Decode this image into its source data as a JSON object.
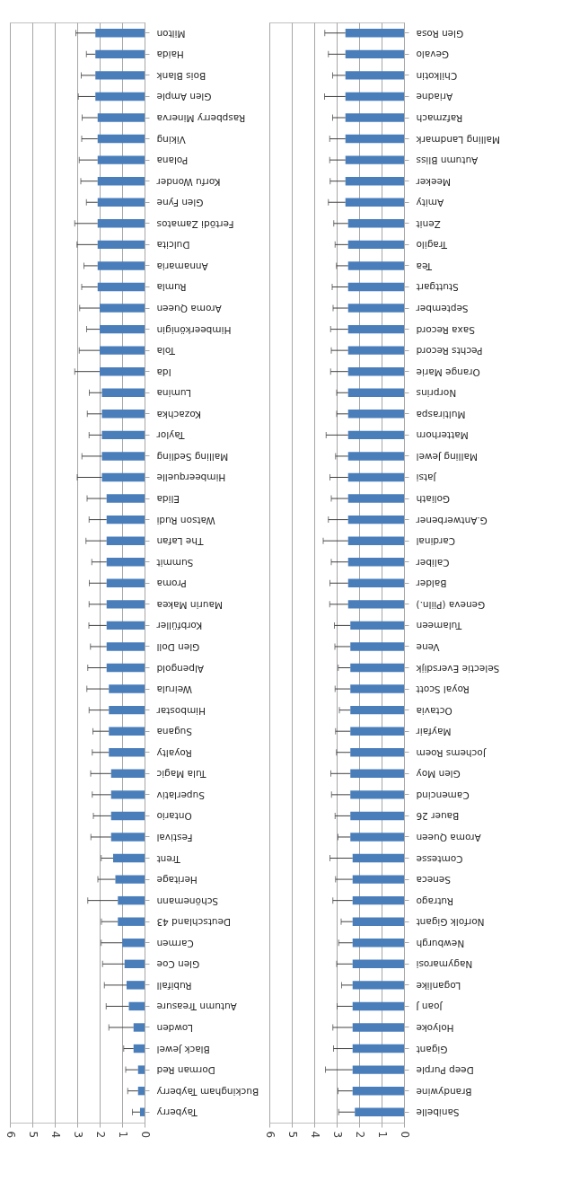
{
  "chart_data": [
    {
      "type": "bar",
      "orientation": "horizontal",
      "color": "#4a7ebb",
      "grid": "x",
      "xlim": [
        6,
        0
      ],
      "xticks": [
        0,
        1,
        2,
        3,
        4,
        5,
        6
      ],
      "categories": [
        "Milton",
        "Haida",
        "Bois Blank",
        "Glen Ample",
        "Raspberry Minerva",
        "Viking",
        "Polana",
        "Korfu Wonder",
        "Glen Fyne",
        "Fertödi Zamatos",
        "Dulcita",
        "Annamaria",
        "Rumla",
        "Aroma Queen",
        "Himbeerkönigin",
        "Tola",
        "Ida",
        "Lumina",
        "Kozachka",
        "Taylor",
        "Malling Sedling",
        "Himbeerquelle",
        "Elida",
        "Watson Rudi",
        "The Lafan",
        "Summit",
        "Proma",
        "Maurin Makea",
        "Korbfüller",
        "Glen Doll",
        "Alpengold",
        "Weirula",
        "Himbostar",
        "Sugana",
        "Royalty",
        "Tula Magic",
        "Superlativ",
        "Ontario",
        "Festival",
        "Trent",
        "Heritage",
        "Schönemann",
        "Deutschland 43",
        "Carmen",
        "Glen Coe",
        "Rubifall",
        "Autumn Treasure",
        "Lowden",
        "Black Jewel",
        "Dorman Red",
        "Buckingham Tayberry",
        "Tayberry"
      ],
      "values": [
        2.19,
        2.19,
        2.19,
        2.19,
        2.09,
        2.09,
        2.09,
        2.09,
        2.09,
        2.09,
        2.09,
        2.09,
        2.09,
        2.0,
        2.0,
        2.0,
        2.0,
        1.9,
        1.9,
        1.9,
        1.9,
        1.9,
        1.69,
        1.69,
        1.69,
        1.69,
        1.69,
        1.69,
        1.69,
        1.69,
        1.69,
        1.59,
        1.59,
        1.59,
        1.59,
        1.49,
        1.49,
        1.49,
        1.49,
        1.4,
        1.3,
        1.19,
        1.19,
        0.99,
        0.89,
        0.8,
        0.7,
        0.49,
        0.49,
        0.29,
        0.29,
        0.2
      ],
      "errors": [
        [
          2.19,
          3.06
        ],
        [
          2.19,
          2.59
        ],
        [
          2.19,
          2.82
        ],
        [
          2.19,
          2.95
        ],
        [
          2.09,
          2.78
        ],
        [
          2.09,
          2.8
        ],
        [
          2.09,
          2.91
        ],
        [
          2.09,
          2.84
        ],
        [
          2.09,
          2.59
        ],
        [
          2.09,
          3.11
        ],
        [
          2.09,
          3.01
        ],
        [
          2.09,
          2.7
        ],
        [
          2.09,
          2.8
        ],
        [
          2.0,
          2.89
        ],
        [
          2.0,
          2.58
        ],
        [
          2.0,
          2.91
        ],
        [
          2.0,
          3.11
        ],
        [
          1.9,
          2.46
        ],
        [
          1.9,
          2.55
        ],
        [
          1.9,
          2.47
        ],
        [
          1.9,
          2.79
        ],
        [
          1.9,
          3.0
        ],
        [
          1.69,
          2.56
        ],
        [
          1.69,
          2.47
        ],
        [
          1.69,
          2.61
        ],
        [
          1.69,
          2.35
        ],
        [
          1.69,
          2.46
        ],
        [
          1.69,
          2.47
        ],
        [
          1.69,
          2.48
        ],
        [
          1.69,
          2.41
        ],
        [
          1.69,
          2.53
        ],
        [
          1.59,
          2.57
        ],
        [
          1.59,
          2.47
        ],
        [
          1.59,
          2.3
        ],
        [
          1.59,
          2.33
        ],
        [
          1.49,
          2.4
        ],
        [
          1.49,
          2.33
        ],
        [
          1.49,
          2.28
        ],
        [
          1.49,
          2.39
        ],
        [
          1.4,
          1.93
        ],
        [
          1.3,
          2.08
        ],
        [
          1.19,
          2.53
        ],
        [
          1.19,
          1.92
        ],
        [
          0.99,
          1.93
        ],
        [
          0.89,
          1.87
        ],
        [
          0.8,
          1.79
        ],
        [
          0.7,
          1.71
        ],
        [
          0.49,
          1.59
        ],
        [
          0.49,
          0.93
        ],
        [
          0.29,
          0.84
        ],
        [
          0.29,
          0.75
        ],
        [
          0.2,
          0.54
        ]
      ]
    },
    {
      "type": "bar",
      "orientation": "horizontal",
      "color": "#4a7ebb",
      "grid": "x",
      "xlim": [
        6,
        0
      ],
      "xticks": [
        0,
        1,
        2,
        3,
        4,
        5,
        6
      ],
      "categories": [
        "Glen Rosa",
        "Gevalo",
        "Chilkotin",
        "Ariadne",
        "Rafzmach",
        "Malling Landmark",
        "Autumn Bliss",
        "Meeker",
        "Amity",
        "Zenit",
        "Tragilo",
        "Tea",
        "Stuttgart",
        "September",
        "Saxa Record",
        "Pechts Record",
        "Orange Marie",
        "Norprins",
        "Multiraspa",
        "Matterhorn",
        "Malling Jewel",
        "Jatsi",
        "Goliath",
        "G.Antwerbener",
        "Cardinal",
        "Caliber",
        "Balder",
        "Geneva (Piiln.)",
        "Tulameen",
        "Vene",
        "Selectie Eversdijk",
        "Royal Scott",
        "Octavia",
        "Mayfair",
        "Jochems Roem",
        "Glen Moy",
        "Camencind",
        "Bauer 26",
        "Aroma Queen",
        "Comtesse",
        "Seneca",
        "Rutrago",
        "Norfolk Gigant",
        "Newburgh",
        "Nagymarosi",
        "Loganlike",
        "Joan J",
        "Holyoke",
        "Gigant",
        "Deep Purple",
        "Brandywine",
        "Sanibelle"
      ],
      "values": [
        2.61,
        2.61,
        2.61,
        2.61,
        2.61,
        2.61,
        2.61,
        2.61,
        2.61,
        2.49,
        2.49,
        2.49,
        2.49,
        2.49,
        2.49,
        2.49,
        2.49,
        2.49,
        2.49,
        2.49,
        2.49,
        2.49,
        2.49,
        2.49,
        2.49,
        2.49,
        2.49,
        2.49,
        2.39,
        2.39,
        2.39,
        2.39,
        2.39,
        2.39,
        2.39,
        2.39,
        2.39,
        2.39,
        2.39,
        2.29,
        2.29,
        2.29,
        2.29,
        2.29,
        2.29,
        2.29,
        2.29,
        2.29,
        2.29,
        2.29,
        2.29,
        2.19
      ],
      "errors": [
        [
          2.61,
          3.53
        ],
        [
          2.61,
          3.37
        ],
        [
          2.61,
          3.18
        ],
        [
          2.61,
          3.54
        ],
        [
          2.61,
          3.18
        ],
        [
          2.61,
          3.31
        ],
        [
          2.61,
          3.31
        ],
        [
          2.61,
          3.29
        ],
        [
          2.61,
          3.37
        ],
        [
          2.49,
          3.13
        ],
        [
          2.49,
          3.07
        ],
        [
          2.49,
          3.01
        ],
        [
          2.49,
          3.2
        ],
        [
          2.49,
          3.16
        ],
        [
          2.49,
          3.27
        ],
        [
          2.49,
          3.24
        ],
        [
          2.49,
          3.27
        ],
        [
          2.49,
          3.0
        ],
        [
          2.49,
          3.0
        ],
        [
          2.49,
          3.47
        ],
        [
          2.49,
          3.05
        ],
        [
          2.49,
          3.3
        ],
        [
          2.49,
          3.24
        ],
        [
          2.49,
          3.37
        ],
        [
          2.49,
          3.6
        ],
        [
          2.49,
          3.24
        ],
        [
          2.49,
          3.3
        ],
        [
          2.49,
          3.31
        ],
        [
          2.39,
          3.1
        ],
        [
          2.39,
          3.08
        ],
        [
          2.39,
          2.93
        ],
        [
          2.39,
          3.07
        ],
        [
          2.39,
          2.88
        ],
        [
          2.39,
          3.05
        ],
        [
          2.39,
          3.01
        ],
        [
          2.39,
          3.26
        ],
        [
          2.39,
          3.23
        ],
        [
          2.39,
          3.07
        ],
        [
          2.39,
          2.94
        ],
        [
          2.29,
          3.3
        ],
        [
          2.29,
          3.05
        ],
        [
          2.29,
          3.17
        ],
        [
          2.29,
          2.8
        ],
        [
          2.29,
          2.91
        ],
        [
          2.29,
          3.0
        ],
        [
          2.29,
          2.78
        ],
        [
          2.29,
          2.98
        ],
        [
          2.29,
          3.17
        ],
        [
          2.29,
          3.14
        ],
        [
          2.29,
          3.5
        ],
        [
          2.29,
          2.94
        ],
        [
          2.19,
          2.91
        ]
      ]
    }
  ]
}
